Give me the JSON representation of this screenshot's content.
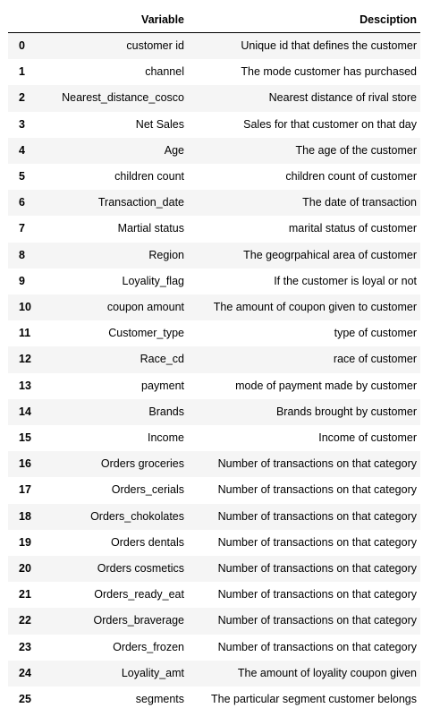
{
  "table": {
    "headers": [
      "Variable",
      "Desciption"
    ],
    "rows": [
      {
        "index": "0",
        "variable": "customer id",
        "description": "Unique id that defines the customer"
      },
      {
        "index": "1",
        "variable": "channel",
        "description": "The mode customer has purchased"
      },
      {
        "index": "2",
        "variable": "Nearest_distance_cosco",
        "description": "Nearest distance of rival store"
      },
      {
        "index": "3",
        "variable": "Net Sales",
        "description": "Sales for that customer on that day"
      },
      {
        "index": "4",
        "variable": "Age",
        "description": "The age of the customer"
      },
      {
        "index": "5",
        "variable": "children count",
        "description": "children count of customer"
      },
      {
        "index": "6",
        "variable": "Transaction_date",
        "description": "The date of transaction"
      },
      {
        "index": "7",
        "variable": "Martial status",
        "description": "marital status of customer"
      },
      {
        "index": "8",
        "variable": "Region",
        "description": "The geogrpahical area of customer"
      },
      {
        "index": "9",
        "variable": "Loyality_flag",
        "description": "If the customer is loyal or not"
      },
      {
        "index": "10",
        "variable": "coupon amount",
        "description": "The amount of coupon given to customer"
      },
      {
        "index": "11",
        "variable": "Customer_type",
        "description": "type of customer"
      },
      {
        "index": "12",
        "variable": "Race_cd",
        "description": "race of customer"
      },
      {
        "index": "13",
        "variable": "payment",
        "description": "mode of payment made by customer"
      },
      {
        "index": "14",
        "variable": "Brands",
        "description": "Brands brought by customer"
      },
      {
        "index": "15",
        "variable": "Income",
        "description": "Income of customer"
      },
      {
        "index": "16",
        "variable": "Orders groceries",
        "description": "Number of transactions on that category"
      },
      {
        "index": "17",
        "variable": "Orders_cerials",
        "description": "Number of transactions on that category"
      },
      {
        "index": "18",
        "variable": "Orders_chokolates",
        "description": "Number of transactions on that category"
      },
      {
        "index": "19",
        "variable": "Orders dentals",
        "description": "Number of transactions on that category"
      },
      {
        "index": "20",
        "variable": "Orders cosmetics",
        "description": "Number of transactions on that category"
      },
      {
        "index": "21",
        "variable": "Orders_ready_eat",
        "description": "Number of transactions on that category"
      },
      {
        "index": "22",
        "variable": "Orders_braverage",
        "description": "Number of transactions on that category"
      },
      {
        "index": "23",
        "variable": "Orders_frozen",
        "description": "Number of transactions on that category"
      },
      {
        "index": "24",
        "variable": "Loyality_amt",
        "description": "The amount of loyality coupon given"
      },
      {
        "index": "25",
        "variable": "segments",
        "description": "The particular segment customer belongs"
      }
    ]
  }
}
